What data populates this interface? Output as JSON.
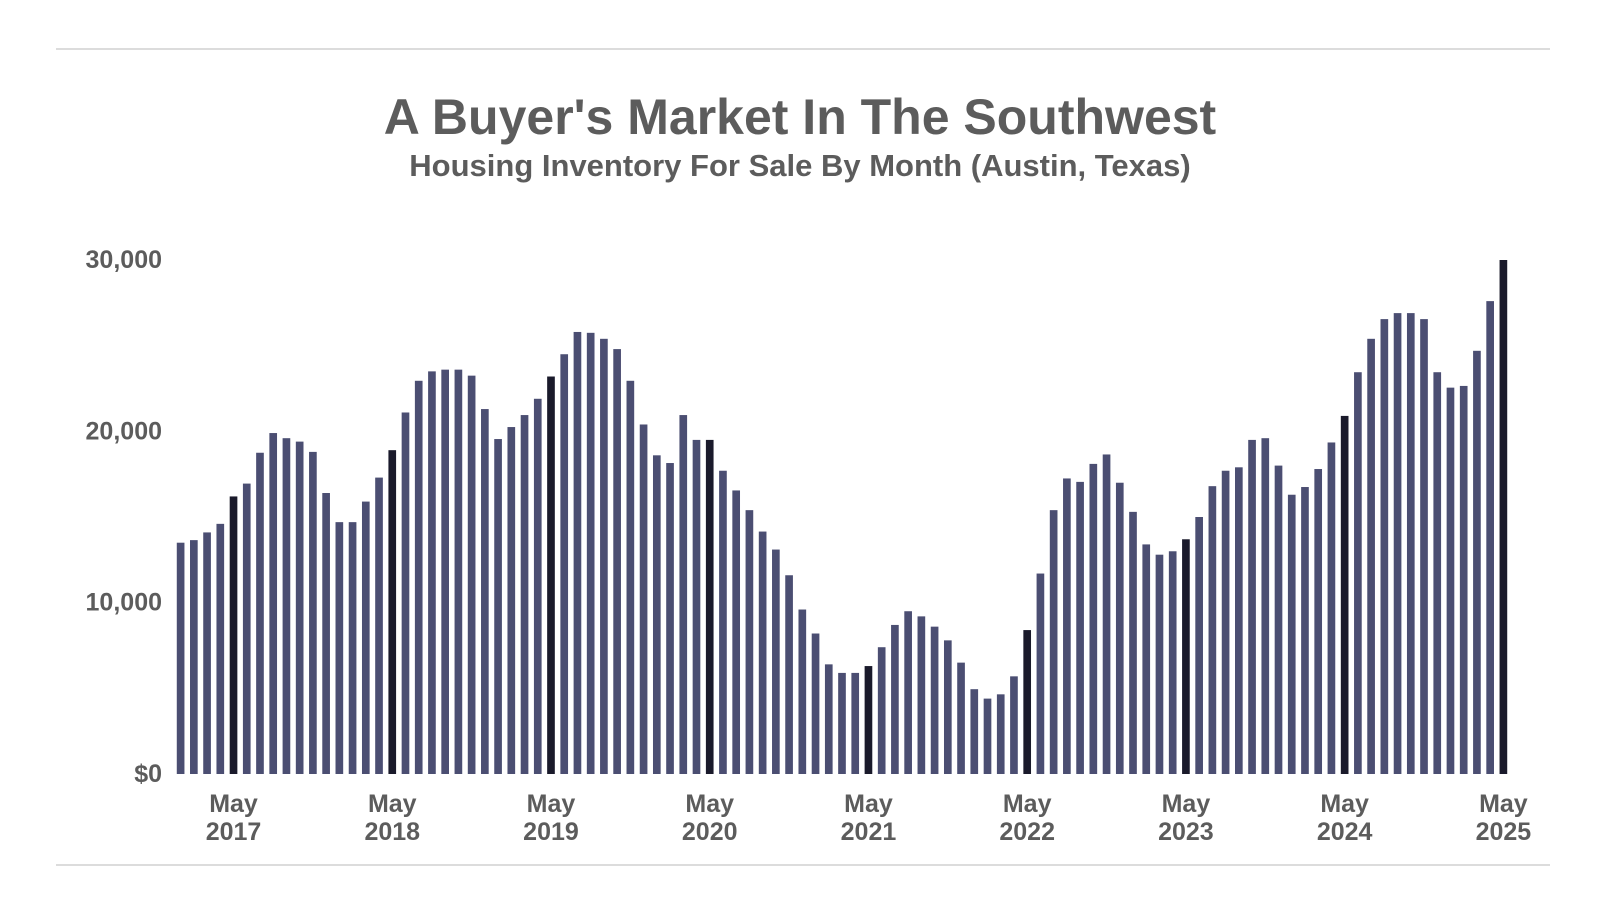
{
  "chart_data": {
    "type": "bar",
    "title": "A Buyer's Market In The Southwest",
    "subtitle": "Housing Inventory For Sale By Month (Austin, Texas)",
    "xlabel": "",
    "ylabel": "",
    "ylim": [
      0,
      30000
    ],
    "y_ticks": [
      "$0",
      "10,000",
      "20,000",
      "30,000"
    ],
    "x_tick_labels": [
      {
        "bar_index": 4,
        "month": "May",
        "year": "2017"
      },
      {
        "bar_index": 16,
        "month": "May",
        "year": "2018"
      },
      {
        "bar_index": 28,
        "month": "May",
        "year": "2019"
      },
      {
        "bar_index": 40,
        "month": "May",
        "year": "2020"
      },
      {
        "bar_index": 52,
        "month": "May",
        "year": "2021"
      },
      {
        "bar_index": 64,
        "month": "May",
        "year": "2022"
      },
      {
        "bar_index": 76,
        "month": "May",
        "year": "2023"
      },
      {
        "bar_index": 88,
        "month": "May",
        "year": "2024"
      },
      {
        "bar_index": 100,
        "month": "May",
        "year": "2025"
      }
    ],
    "first_month": "2017-01",
    "last_month": "2025-05",
    "values": [
      13500,
      13650,
      14100,
      14600,
      16200,
      16950,
      18750,
      19900,
      19600,
      19400,
      18800,
      16400,
      14700,
      14700,
      15900,
      17300,
      18900,
      21100,
      22950,
      23500,
      23600,
      23600,
      23250,
      21300,
      19550,
      20250,
      20950,
      21900,
      23200,
      24500,
      25800,
      25750,
      25400,
      24800,
      22950,
      20400,
      18600,
      18150,
      20950,
      19500,
      19500,
      17700,
      16550,
      15400,
      14150,
      13100,
      11600,
      9600,
      8200,
      6400,
      5900,
      5900,
      6300,
      7400,
      8700,
      9500,
      9200,
      8600,
      7800,
      6500,
      4950,
      4400,
      4650,
      5700,
      8400,
      11700,
      15400,
      17250,
      17050,
      18100,
      18650,
      17000,
      15300,
      13400,
      12800,
      13000,
      13700,
      15000,
      16800,
      17700,
      17900,
      19500,
      19600,
      18000,
      16300,
      16750,
      17800,
      19350,
      20900,
      23450,
      25400,
      26550,
      26900,
      26900,
      26550,
      23450,
      22550,
      22650,
      24700,
      27600,
      30000
    ],
    "colors": {
      "bar": "#4b4e72",
      "highlight": "#1a1a2b",
      "grid_rule": "#dcdcdc",
      "text": "#5c5c5c"
    }
  }
}
